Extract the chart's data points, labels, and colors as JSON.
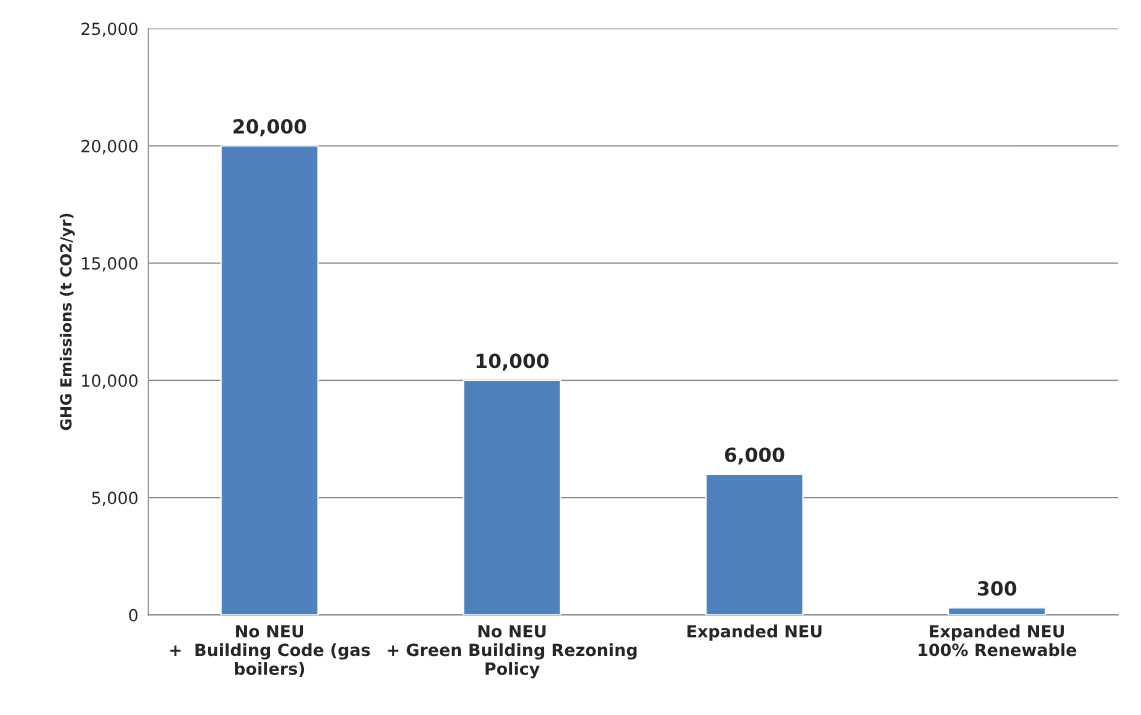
{
  "chart_data": {
    "type": "bar",
    "ylabel": "GHG Emissions (t CO2/yr)",
    "categories": [
      "No NEU\n+  Building Code (gas\nboilers)",
      "No NEU\n+ Green Building Rezoning\nPolicy",
      "Expanded NEU",
      "Expanded NEU\n100% Renewable"
    ],
    "values": [
      20000,
      10000,
      6000,
      300
    ],
    "color": "#4f81bd",
    "value_labels": [
      "20,000",
      "10,000",
      "6,000",
      "300"
    ],
    "ylim": [
      0,
      25000
    ],
    "yticks": [
      {
        "value": 0,
        "label": "0"
      },
      {
        "value": 5000,
        "label": "5,000"
      },
      {
        "value": 10000,
        "label": "10,000"
      },
      {
        "value": 15000,
        "label": "15,000"
      },
      {
        "value": 20000,
        "label": "20,000"
      },
      {
        "value": 25000,
        "label": "25,000"
      }
    ],
    "grid": "y",
    "legend": false
  }
}
